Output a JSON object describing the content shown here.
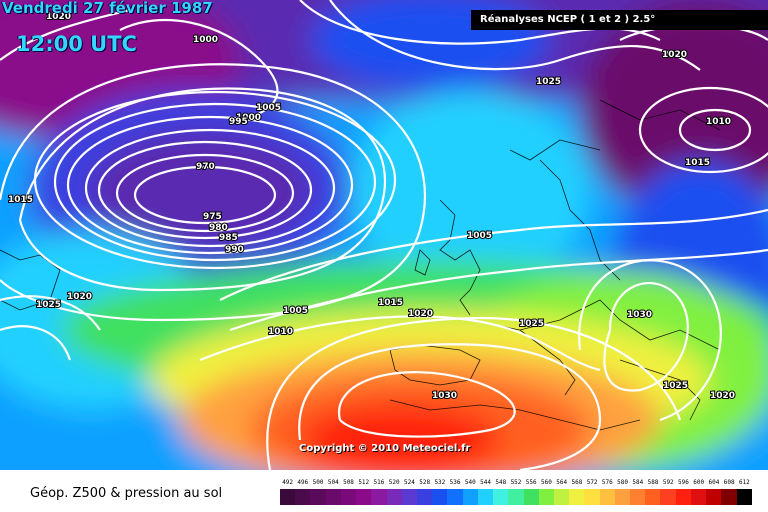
{
  "header": {
    "date": "Vendredi 27 février 1987",
    "time": "12:00 UTC",
    "source": "Réanalyses NCEP ( 1 et 2 ) 2.5°"
  },
  "copyright": "Copyright © 2010 Meteociel.fr",
  "legend": {
    "title": "Géop. Z500 & pression au sol",
    "values": [
      "492",
      "496",
      "500",
      "504",
      "508",
      "512",
      "516",
      "520",
      "524",
      "528",
      "532",
      "536",
      "540",
      "544",
      "548",
      "552",
      "556",
      "560",
      "564",
      "568",
      "572",
      "576",
      "580",
      "584",
      "588",
      "592",
      "596",
      "600",
      "604",
      "608",
      "612"
    ],
    "colors": [
      "#3a0a3a",
      "#4a0b4a",
      "#5a0a5a",
      "#6a0a6a",
      "#7a0a7a",
      "#8a0a8a",
      "#8b1aa0",
      "#7a2ab8",
      "#5a3ad0",
      "#3a40e0",
      "#1a50f0",
      "#1070ff",
      "#10a0ff",
      "#20d0ff",
      "#40f0e0",
      "#40f0a0",
      "#40e060",
      "#80f040",
      "#c0f040",
      "#f0f040",
      "#ffe040",
      "#ffc040",
      "#ffa040",
      "#ff8030",
      "#ff6020",
      "#ff4020",
      "#ff2010",
      "#e01010",
      "#c00000",
      "#800000",
      "#000000"
    ]
  },
  "isobars": {
    "l1020a": "1020",
    "l1000": "1000",
    "l1005a": "1005",
    "l1000b": "1000",
    "l995": "995",
    "l970": "970",
    "l975": "975",
    "l980": "980",
    "l985": "985",
    "l990": "990",
    "l1015a": "1015",
    "l1020b": "1020",
    "l1025a": "1025",
    "l1005b": "1005",
    "l1010": "1010",
    "l1015b": "1015",
    "l1020c": "1020",
    "l1025b": "1025",
    "l1030a": "1030",
    "l1030b": "1030",
    "l1025c": "1025",
    "l1020d": "1020",
    "l1025d": "1025",
    "l1020e": "1020",
    "l1010b": "1010",
    "l1015c": "1015",
    "l1005c": "1005"
  }
}
